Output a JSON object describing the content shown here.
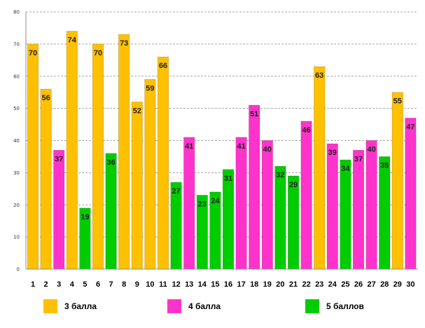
{
  "chart_data": {
    "type": "bar",
    "title": "",
    "xlabel": "",
    "ylabel": "",
    "ylim": [
      0,
      80
    ],
    "yticks": [
      0,
      10,
      20,
      30,
      40,
      50,
      60,
      70,
      80
    ],
    "grid": true,
    "categories": [
      "1",
      "2",
      "3",
      "4",
      "5",
      "6",
      "7",
      "8",
      "9",
      "10",
      "11",
      "12",
      "13",
      "14",
      "15",
      "16",
      "17",
      "18",
      "19",
      "20",
      "21",
      "22",
      "23",
      "24",
      "25",
      "26",
      "27",
      "28",
      "29",
      "30"
    ],
    "values": [
      70,
      56,
      37,
      74,
      19,
      70,
      36,
      73,
      52,
      59,
      66,
      27,
      41,
      23,
      24,
      31,
      41,
      51,
      40,
      32,
      29,
      46,
      63,
      39,
      34,
      37,
      40,
      35,
      55,
      47
    ],
    "groups": [
      "3",
      "3",
      "4",
      "3",
      "5",
      "3",
      "5",
      "3",
      "3",
      "3",
      "3",
      "5",
      "4",
      "5",
      "5",
      "5",
      "4",
      "4",
      "4",
      "5",
      "5",
      "4",
      "3",
      "4",
      "5",
      "4",
      "4",
      "5",
      "3",
      "4"
    ],
    "legend": [
      {
        "key": "3",
        "label": "3 балла",
        "color": "#FFC000"
      },
      {
        "key": "4",
        "label": "4 балла",
        "color": "#FF33CC"
      },
      {
        "key": "5",
        "label": "5 баллов",
        "color": "#00CC00"
      }
    ],
    "legend_position": "bottom"
  }
}
